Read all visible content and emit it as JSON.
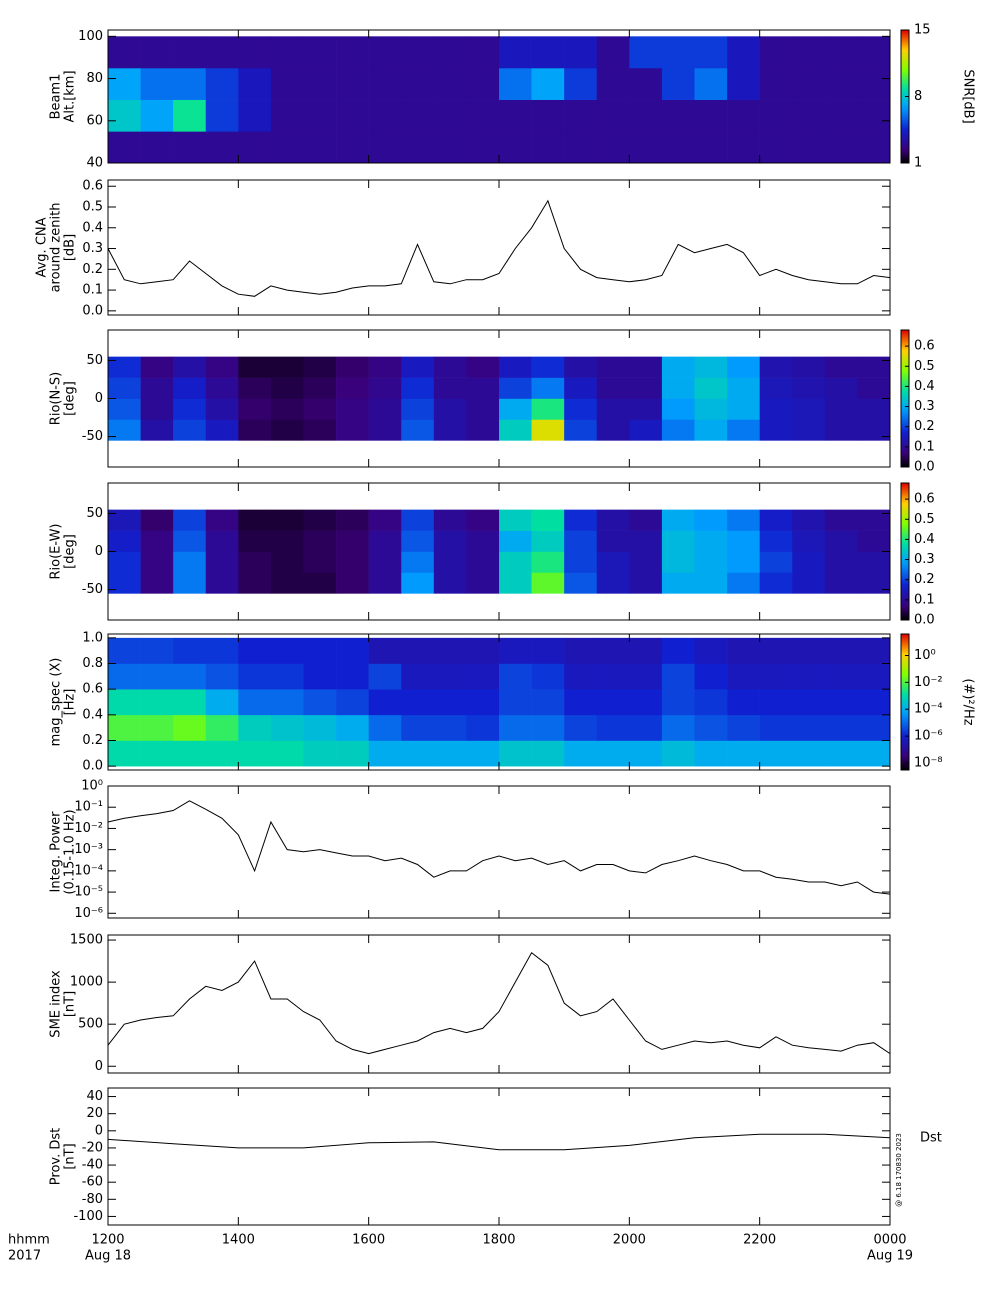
{
  "x_axis": {
    "xlim": [
      12,
      24
    ],
    "xticks": [
      {
        "value": 12,
        "label": "1200"
      },
      {
        "value": 14,
        "label": "1400"
      },
      {
        "value": 16,
        "label": "1600"
      },
      {
        "value": 18,
        "label": "1800"
      },
      {
        "value": 20,
        "label": "2000"
      },
      {
        "value": 22,
        "label": "2200"
      },
      {
        "value": 24,
        "label": "0000"
      }
    ],
    "date_labels": [
      {
        "value": 12,
        "label": "Aug 18"
      },
      {
        "value": 24,
        "label": "Aug 19"
      }
    ],
    "unit_label": "hhmm",
    "year": "2017",
    "time_bins": [
      12,
      12.5,
      13,
      13.5,
      14,
      14.5,
      15,
      15.5,
      16,
      16.5,
      17,
      17.5,
      18,
      18.5,
      19,
      19.5,
      20,
      20.5,
      21,
      21.5,
      22,
      22.5,
      23,
      23.5,
      24
    ],
    "times": [
      12,
      12.25,
      12.5,
      12.75,
      13,
      13.25,
      13.5,
      13.75,
      14,
      14.25,
      14.5,
      14.75,
      15,
      15.25,
      15.5,
      15.75,
      16,
      16.25,
      16.5,
      16.75,
      17,
      17.25,
      17.5,
      17.75,
      18,
      18.25,
      18.5,
      18.75,
      19,
      19.25,
      19.5,
      19.75,
      20,
      20.25,
      20.5,
      20.75,
      21,
      21.25,
      21.5,
      21.75,
      22,
      22.25,
      22.5,
      22.75,
      23,
      23.25,
      23.5,
      23.75,
      24
    ]
  },
  "chart_data": [
    {
      "type": "heatmap",
      "ylabel": [
        "Beam1",
        "Alt.[km]"
      ],
      "ylim": [
        40,
        103
      ],
      "yticks": [
        40,
        60,
        80,
        100
      ],
      "y_edges": [
        40,
        55,
        70,
        85,
        100
      ],
      "zlim": [
        1,
        15
      ],
      "zticks": [
        1,
        8,
        15
      ],
      "zlabel": "SNR[dB]",
      "z": [
        [
          3,
          3,
          3,
          3,
          3,
          3,
          3,
          3,
          3,
          3,
          3,
          3,
          3,
          3,
          3,
          3,
          3,
          3,
          3,
          3,
          3,
          3,
          3,
          3
        ],
        [
          8,
          7,
          9,
          5,
          4,
          3,
          3,
          3,
          3,
          3,
          3,
          3,
          3,
          3,
          3,
          3,
          3,
          3,
          3,
          3,
          3,
          3,
          3,
          3
        ],
        [
          7,
          6,
          6,
          5,
          4,
          3,
          3,
          3,
          3,
          3,
          3,
          3,
          6,
          7,
          5,
          3,
          3,
          5,
          6,
          4,
          3,
          3,
          3,
          3
        ],
        [
          3,
          3,
          3,
          3,
          3,
          3,
          3,
          3,
          3,
          3,
          3,
          3,
          4,
          4,
          4,
          3,
          5,
          5,
          5,
          4,
          3,
          3,
          3,
          3
        ]
      ]
    },
    {
      "type": "line",
      "ylabel": [
        "Avg. CNA",
        "around zenith",
        "[dB]"
      ],
      "ylim": [
        -0.02,
        0.63
      ],
      "color": "#000000",
      "yticks": [
        {
          "value": 0,
          "label": "0.0"
        },
        {
          "value": 0.1,
          "label": "0.1"
        },
        {
          "value": 0.2,
          "label": "0.2"
        },
        {
          "value": 0.3,
          "label": "0.3"
        },
        {
          "value": 0.4,
          "label": "0.4"
        },
        {
          "value": 0.5,
          "label": "0.5"
        },
        {
          "value": 0.6,
          "label": "0.6"
        }
      ],
      "values": [
        0.3,
        0.15,
        0.13,
        0.14,
        0.15,
        0.24,
        0.18,
        0.12,
        0.08,
        0.07,
        0.12,
        0.1,
        0.09,
        0.08,
        0.09,
        0.11,
        0.12,
        0.12,
        0.13,
        0.32,
        0.14,
        0.13,
        0.15,
        0.15,
        0.18,
        0.3,
        0.4,
        0.53,
        0.3,
        0.2,
        0.16,
        0.15,
        0.14,
        0.15,
        0.17,
        0.32,
        0.28,
        0.3,
        0.32,
        0.28,
        0.17,
        0.2,
        0.17,
        0.15,
        0.14,
        0.13,
        0.13,
        0.17,
        0.16
      ]
    },
    {
      "type": "heatmap",
      "ylabel": [
        "Rio(N-S)",
        "[deg]"
      ],
      "ylim": [
        -90,
        90
      ],
      "yticks": [
        -50,
        0,
        50
      ],
      "y_edges": [
        -55,
        -27.5,
        0,
        27.5,
        55
      ],
      "zlim": [
        0,
        0.68
      ],
      "zticks": [
        {
          "value": 0,
          "label": "0.0"
        },
        {
          "value": 0.1,
          "label": "0.1"
        },
        {
          "value": 0.2,
          "label": "0.2"
        },
        {
          "value": 0.3,
          "label": "0.3"
        },
        {
          "value": 0.4,
          "label": "0.4"
        },
        {
          "value": 0.5,
          "label": "0.5"
        },
        {
          "value": 0.6,
          "label": "0.6"
        }
      ],
      "z": [
        [
          0.25,
          0.12,
          0.2,
          0.15,
          0.05,
          0.04,
          0.05,
          0.08,
          0.1,
          0.22,
          0.12,
          0.1,
          0.35,
          0.55,
          0.2,
          0.12,
          0.15,
          0.25,
          0.3,
          0.25,
          0.15,
          0.14,
          0.12,
          0.12
        ],
        [
          0.22,
          0.1,
          0.18,
          0.12,
          0.06,
          0.05,
          0.06,
          0.08,
          0.1,
          0.2,
          0.12,
          0.1,
          0.3,
          0.4,
          0.18,
          0.12,
          0.12,
          0.28,
          0.32,
          0.3,
          0.15,
          0.14,
          0.12,
          0.12
        ],
        [
          0.2,
          0.1,
          0.16,
          0.1,
          0.05,
          0.04,
          0.05,
          0.07,
          0.09,
          0.18,
          0.1,
          0.1,
          0.2,
          0.25,
          0.15,
          0.1,
          0.1,
          0.3,
          0.34,
          0.3,
          0.14,
          0.13,
          0.12,
          0.1
        ],
        [
          0.18,
          0.08,
          0.12,
          0.08,
          0.03,
          0.03,
          0.04,
          0.06,
          0.08,
          0.15,
          0.1,
          0.08,
          0.15,
          0.18,
          0.12,
          0.1,
          0.1,
          0.3,
          0.32,
          0.28,
          0.13,
          0.12,
          0.1,
          0.1
        ]
      ]
    },
    {
      "type": "heatmap",
      "ylabel": [
        "Rio(E-W)",
        "[deg]"
      ],
      "ylim": [
        -90,
        90
      ],
      "yticks": [
        -50,
        0,
        50
      ],
      "y_edges": [
        -55,
        -27.5,
        0,
        27.5,
        55
      ],
      "zlim": [
        0,
        0.68
      ],
      "zticks": [
        {
          "value": 0,
          "label": "0.0"
        },
        {
          "value": 0.1,
          "label": "0.1"
        },
        {
          "value": 0.2,
          "label": "0.2"
        },
        {
          "value": 0.3,
          "label": "0.3"
        },
        {
          "value": 0.4,
          "label": "0.4"
        },
        {
          "value": 0.5,
          "label": "0.5"
        },
        {
          "value": 0.6,
          "label": "0.6"
        }
      ],
      "z": [
        [
          0.18,
          0.08,
          0.25,
          0.1,
          0.05,
          0.04,
          0.04,
          0.06,
          0.1,
          0.28,
          0.12,
          0.1,
          0.35,
          0.45,
          0.22,
          0.14,
          0.12,
          0.3,
          0.3,
          0.25,
          0.18,
          0.15,
          0.12,
          0.12
        ],
        [
          0.18,
          0.08,
          0.25,
          0.1,
          0.05,
          0.04,
          0.05,
          0.06,
          0.1,
          0.25,
          0.12,
          0.1,
          0.35,
          0.4,
          0.2,
          0.14,
          0.12,
          0.32,
          0.3,
          0.28,
          0.2,
          0.15,
          0.12,
          0.12
        ],
        [
          0.16,
          0.08,
          0.22,
          0.1,
          0.04,
          0.04,
          0.05,
          0.06,
          0.1,
          0.22,
          0.12,
          0.1,
          0.3,
          0.35,
          0.2,
          0.12,
          0.12,
          0.32,
          0.3,
          0.28,
          0.18,
          0.14,
          0.12,
          0.1
        ],
        [
          0.14,
          0.06,
          0.2,
          0.08,
          0.03,
          0.03,
          0.04,
          0.05,
          0.08,
          0.2,
          0.1,
          0.08,
          0.35,
          0.38,
          0.18,
          0.12,
          0.1,
          0.3,
          0.28,
          0.25,
          0.16,
          0.13,
          0.1,
          0.1
        ]
      ]
    },
    {
      "type": "heatmap",
      "ylabel": [
        "mag_spec (X)",
        "[Hz]"
      ],
      "ylim": [
        -0.03,
        1.03
      ],
      "yticks": [
        {
          "value": 0,
          "label": "0.0"
        },
        {
          "value": 0.2,
          "label": "0.2"
        },
        {
          "value": 0.4,
          "label": "0.4"
        },
        {
          "value": 0.6,
          "label": "0.6"
        },
        {
          "value": 0.8,
          "label": "0.8"
        },
        {
          "value": 1,
          "label": "1.0"
        }
      ],
      "y_edges": [
        0,
        0.2,
        0.4,
        0.6,
        0.8,
        1
      ],
      "zlim": [
        3e-09,
        40
      ],
      "zlog": true,
      "zlabel": "(#)²/Hz",
      "zticks": [
        {
          "value": 1,
          "label": "10⁰"
        },
        {
          "value": 0.01,
          "label": "10⁻²"
        },
        {
          "value": 0.0001,
          "label": "10⁻⁴"
        },
        {
          "value": 1e-06,
          "label": "10⁻⁶"
        },
        {
          "value": 1e-08,
          "label": "10⁻⁸"
        }
      ],
      "z": [
        [
          0.001,
          0.001,
          0.001,
          0.001,
          0.001,
          0.001,
          0.0005,
          0.0005,
          0.0001,
          0.0001,
          0.0001,
          0.0001,
          0.0003,
          0.0003,
          0.0001,
          0.0001,
          0.0001,
          0.0002,
          0.0001,
          0.0001,
          0.0001,
          0.0001,
          0.0001,
          0.0001
        ],
        [
          0.01,
          0.01,
          0.02,
          0.005,
          0.0005,
          0.0003,
          0.0002,
          0.0001,
          1e-05,
          3e-06,
          3e-06,
          2e-06,
          1e-05,
          1e-05,
          3e-06,
          2e-06,
          2e-06,
          1e-05,
          5e-06,
          3e-06,
          2e-06,
          2e-06,
          2e-06,
          2e-06
        ],
        [
          0.001,
          0.001,
          0.001,
          0.0001,
          1e-05,
          1e-05,
          5e-06,
          3e-06,
          1e-06,
          1e-06,
          1e-06,
          1e-06,
          3e-06,
          3e-06,
          1e-06,
          1e-06,
          1e-06,
          3e-06,
          2e-06,
          1e-06,
          1e-06,
          1e-06,
          1e-06,
          1e-06
        ],
        [
          1e-05,
          1e-05,
          1e-05,
          5e-06,
          2e-06,
          2e-06,
          1e-06,
          1e-06,
          3e-06,
          5e-07,
          5e-07,
          5e-07,
          3e-06,
          2e-06,
          5e-07,
          5e-07,
          5e-07,
          3e-06,
          1e-06,
          5e-07,
          5e-07,
          5e-07,
          5e-07,
          5e-07
        ],
        [
          3e-06,
          3e-06,
          2e-06,
          2e-06,
          1e-06,
          1e-06,
          1e-06,
          1e-06,
          3e-07,
          3e-07,
          3e-07,
          3e-07,
          5e-07,
          5e-07,
          3e-07,
          3e-07,
          3e-07,
          1e-06,
          5e-07,
          3e-07,
          3e-07,
          3e-07,
          3e-07,
          3e-07
        ]
      ]
    },
    {
      "type": "line",
      "ylabel": [
        "Integ. Power",
        "(0.15-1.0 Hz)"
      ],
      "log": true,
      "ylim": [
        6e-07,
        1
      ],
      "color": "#000000",
      "yticks": [
        {
          "value": 1,
          "label": "10⁰"
        },
        {
          "value": 0.1,
          "label": "10⁻¹"
        },
        {
          "value": 0.01,
          "label": "10⁻²"
        },
        {
          "value": 0.001,
          "label": "10⁻³"
        },
        {
          "value": 0.0001,
          "label": "10⁻⁴"
        },
        {
          "value": 1e-05,
          "label": "10⁻⁵"
        },
        {
          "value": 1e-06,
          "label": "10⁻⁶"
        }
      ],
      "values": [
        0.02,
        0.03,
        0.04,
        0.05,
        0.07,
        0.2,
        0.08,
        0.03,
        0.005,
        0.0001,
        0.02,
        0.001,
        0.0008,
        0.001,
        0.0007,
        0.0005,
        0.0005,
        0.0003,
        0.0004,
        0.0002,
        5e-05,
        0.0001,
        0.0001,
        0.0003,
        0.0005,
        0.0003,
        0.0004,
        0.0002,
        0.0003,
        0.0001,
        0.0002,
        0.0002,
        0.0001,
        8e-05,
        0.0002,
        0.0003,
        0.0005,
        0.0003,
        0.0002,
        0.0001,
        0.0001,
        5e-05,
        4e-05,
        3e-05,
        3e-05,
        2e-05,
        3e-05,
        1e-05,
        8e-06
      ]
    },
    {
      "type": "line",
      "ylabel": [
        "SME index",
        "[nT]"
      ],
      "ylim": [
        -80,
        1560
      ],
      "yticks": [
        0,
        500,
        1000,
        1500
      ],
      "color": "#000000",
      "values": [
        250,
        500,
        550,
        580,
        600,
        800,
        950,
        900,
        1000,
        1250,
        800,
        800,
        650,
        550,
        300,
        200,
        150,
        200,
        250,
        300,
        400,
        450,
        400,
        450,
        650,
        1000,
        1350,
        1200,
        750,
        600,
        650,
        800,
        550,
        300,
        200,
        250,
        300,
        280,
        300,
        250,
        220,
        350,
        250,
        220,
        200,
        180,
        250,
        280,
        150
      ]
    },
    {
      "type": "line",
      "ylabel": [
        "Prov. Dst",
        "[nT]"
      ],
      "ylim": [
        -110,
        50
      ],
      "yticks": [
        -100,
        -80,
        -60,
        -40,
        -20,
        0,
        20,
        40
      ],
      "color": "#000000",
      "annotation": "Dst",
      "stamp": "@ 6.18 170830 2023",
      "x": [
        12,
        13,
        14,
        15,
        16,
        17,
        18,
        19,
        20,
        21,
        22,
        23,
        24
      ],
      "values": [
        -10,
        -15,
        -20,
        -20,
        -14,
        -13,
        -22,
        -22,
        -17,
        -8,
        -4,
        -4,
        -8
      ]
    }
  ]
}
